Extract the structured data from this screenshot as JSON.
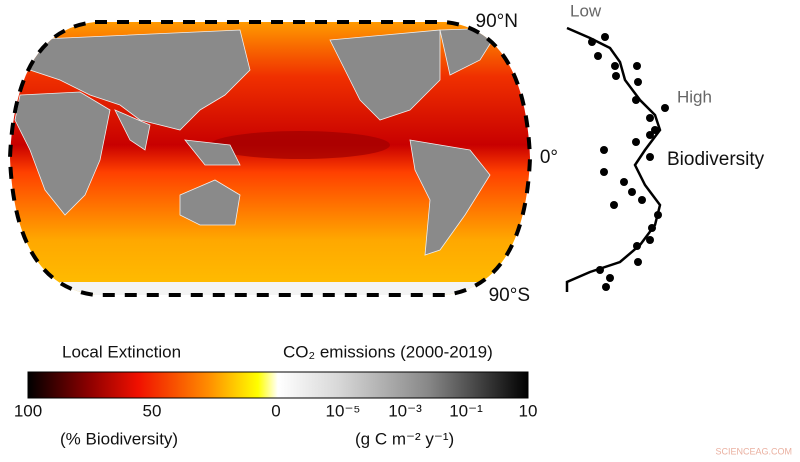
{
  "map": {
    "north_label": "90°N",
    "equator_label": "0°",
    "south_label": "90°S"
  },
  "profile": {
    "low_label": "Low",
    "high_label": "High",
    "axis_label": "Biodiversity"
  },
  "colorbar": {
    "left_title": "Local Extinction",
    "right_title": "CO₂ emissions (2000-2019)",
    "ticks": [
      "100",
      "50",
      "0",
      "10⁻⁵",
      "10⁻³",
      "10⁻¹",
      "10"
    ],
    "left_unit": "(% Biodiversity)",
    "right_unit": "(g C m⁻² y⁻¹)"
  },
  "watermark": "SCIENCEAG.COM"
}
